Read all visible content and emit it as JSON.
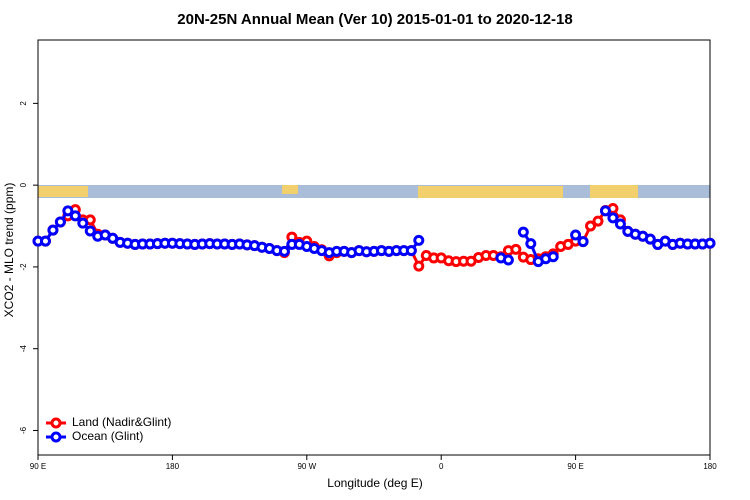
{
  "chart_data": {
    "type": "line",
    "title": "20N-25N Annual Mean (Ver 10)   2015-01-01 to 2020-12-18",
    "x_label": "Longitude (deg E)",
    "y_label": "XCO2 - MLO trend (ppm)",
    "x": [
      90,
      95,
      100,
      105,
      110,
      115,
      120,
      125,
      130,
      135,
      140,
      145,
      150,
      155,
      160,
      165,
      170,
      175,
      180,
      185,
      190,
      195,
      200,
      205,
      210,
      215,
      220,
      225,
      230,
      235,
      240,
      245,
      250,
      255,
      260,
      265,
      270,
      275,
      280,
      285,
      290,
      295,
      300,
      305,
      310,
      315,
      320,
      325,
      330,
      335,
      340,
      345,
      350,
      355,
      360,
      365,
      370,
      375,
      380,
      385,
      390,
      395,
      400,
      405,
      410,
      415,
      420,
      425,
      430,
      435,
      440,
      445,
      450,
      455,
      460,
      465,
      470,
      475,
      480,
      485,
      490,
      495,
      500,
      505,
      510,
      515,
      520,
      525,
      530,
      535,
      540
    ],
    "series": [
      {
        "name": "Land (Nadir&Glint)",
        "color": "#ff0000",
        "values": [
          -1.37,
          -1.37,
          -1.1,
          -0.9,
          -0.75,
          -0.6,
          -0.85,
          -0.85,
          -1.2,
          -1.22,
          -1.3,
          -1.4,
          -1.42,
          -1.45,
          -1.44,
          -1.44,
          -1.43,
          -1.42,
          -1.42,
          -1.43,
          -1.44,
          -1.45,
          -1.44,
          -1.43,
          -1.44,
          -1.44,
          -1.45,
          -1.44,
          -1.46,
          -1.48,
          -1.52,
          -1.55,
          -1.6,
          -1.65,
          -1.27,
          -1.4,
          -1.37,
          -1.5,
          -1.58,
          -1.73,
          -1.65,
          -1.62,
          -1.65,
          -1.6,
          -1.63,
          -1.62,
          -1.6,
          -1.62,
          -1.6,
          -1.6,
          -1.6,
          -1.98,
          -1.72,
          -1.78,
          -1.78,
          -1.85,
          -1.87,
          -1.86,
          -1.86,
          -1.77,
          -1.72,
          -1.72,
          -1.75,
          -1.6,
          -1.57,
          -1.76,
          -1.82,
          -1.8,
          -1.75,
          -1.68,
          -1.5,
          -1.45,
          -1.37,
          -1.38,
          -1.0,
          -0.88,
          -0.62,
          -0.57,
          -0.85,
          -1.13,
          -1.2,
          -1.25,
          -1.32,
          -1.45,
          -1.37,
          -1.45,
          -1.42,
          -1.44,
          -1.44,
          -1.44,
          -1.42
        ]
      },
      {
        "name": "Ocean (Glint)",
        "color": "#0000ff",
        "values": [
          -1.37,
          -1.37,
          -1.1,
          -0.9,
          -0.63,
          -0.75,
          -0.93,
          -1.12,
          -1.25,
          -1.22,
          -1.3,
          -1.4,
          -1.42,
          -1.45,
          -1.44,
          -1.44,
          -1.43,
          -1.42,
          -1.42,
          -1.43,
          -1.44,
          -1.45,
          -1.44,
          -1.43,
          -1.44,
          -1.44,
          -1.45,
          -1.44,
          -1.46,
          -1.48,
          -1.52,
          -1.55,
          -1.6,
          -1.62,
          -1.45,
          -1.45,
          -1.5,
          -1.55,
          -1.6,
          -1.65,
          -1.62,
          -1.62,
          -1.65,
          -1.6,
          -1.63,
          -1.62,
          -1.6,
          -1.62,
          -1.6,
          -1.6,
          -1.6,
          -1.35,
          null,
          null,
          null,
          null,
          null,
          null,
          null,
          null,
          null,
          null,
          -1.78,
          -1.83,
          null,
          -1.15,
          -1.43,
          -1.87,
          -1.8,
          -1.75,
          null,
          null,
          -1.22,
          -1.38,
          null,
          null,
          -0.63,
          -0.8,
          -0.95,
          -1.13,
          -1.2,
          -1.25,
          -1.32,
          -1.45,
          -1.37,
          -1.45,
          -1.42,
          -1.44,
          -1.44,
          -1.44,
          -1.42
        ]
      }
    ],
    "xlim": [
      90,
      540
    ],
    "xticks": [
      {
        "value": 90,
        "label": "90 E"
      },
      180,
      {
        "value": 270,
        "label": "90 W"
      },
      {
        "value": 360,
        "label": "0"
      },
      {
        "value": 450,
        "label": "90 E"
      },
      {
        "value": 540,
        "label": "180"
      }
    ],
    "ylim": [
      -6.6,
      3.55
    ],
    "yticks": [
      -6,
      -4,
      -2,
      0,
      2
    ],
    "legend": "bottom-left"
  }
}
